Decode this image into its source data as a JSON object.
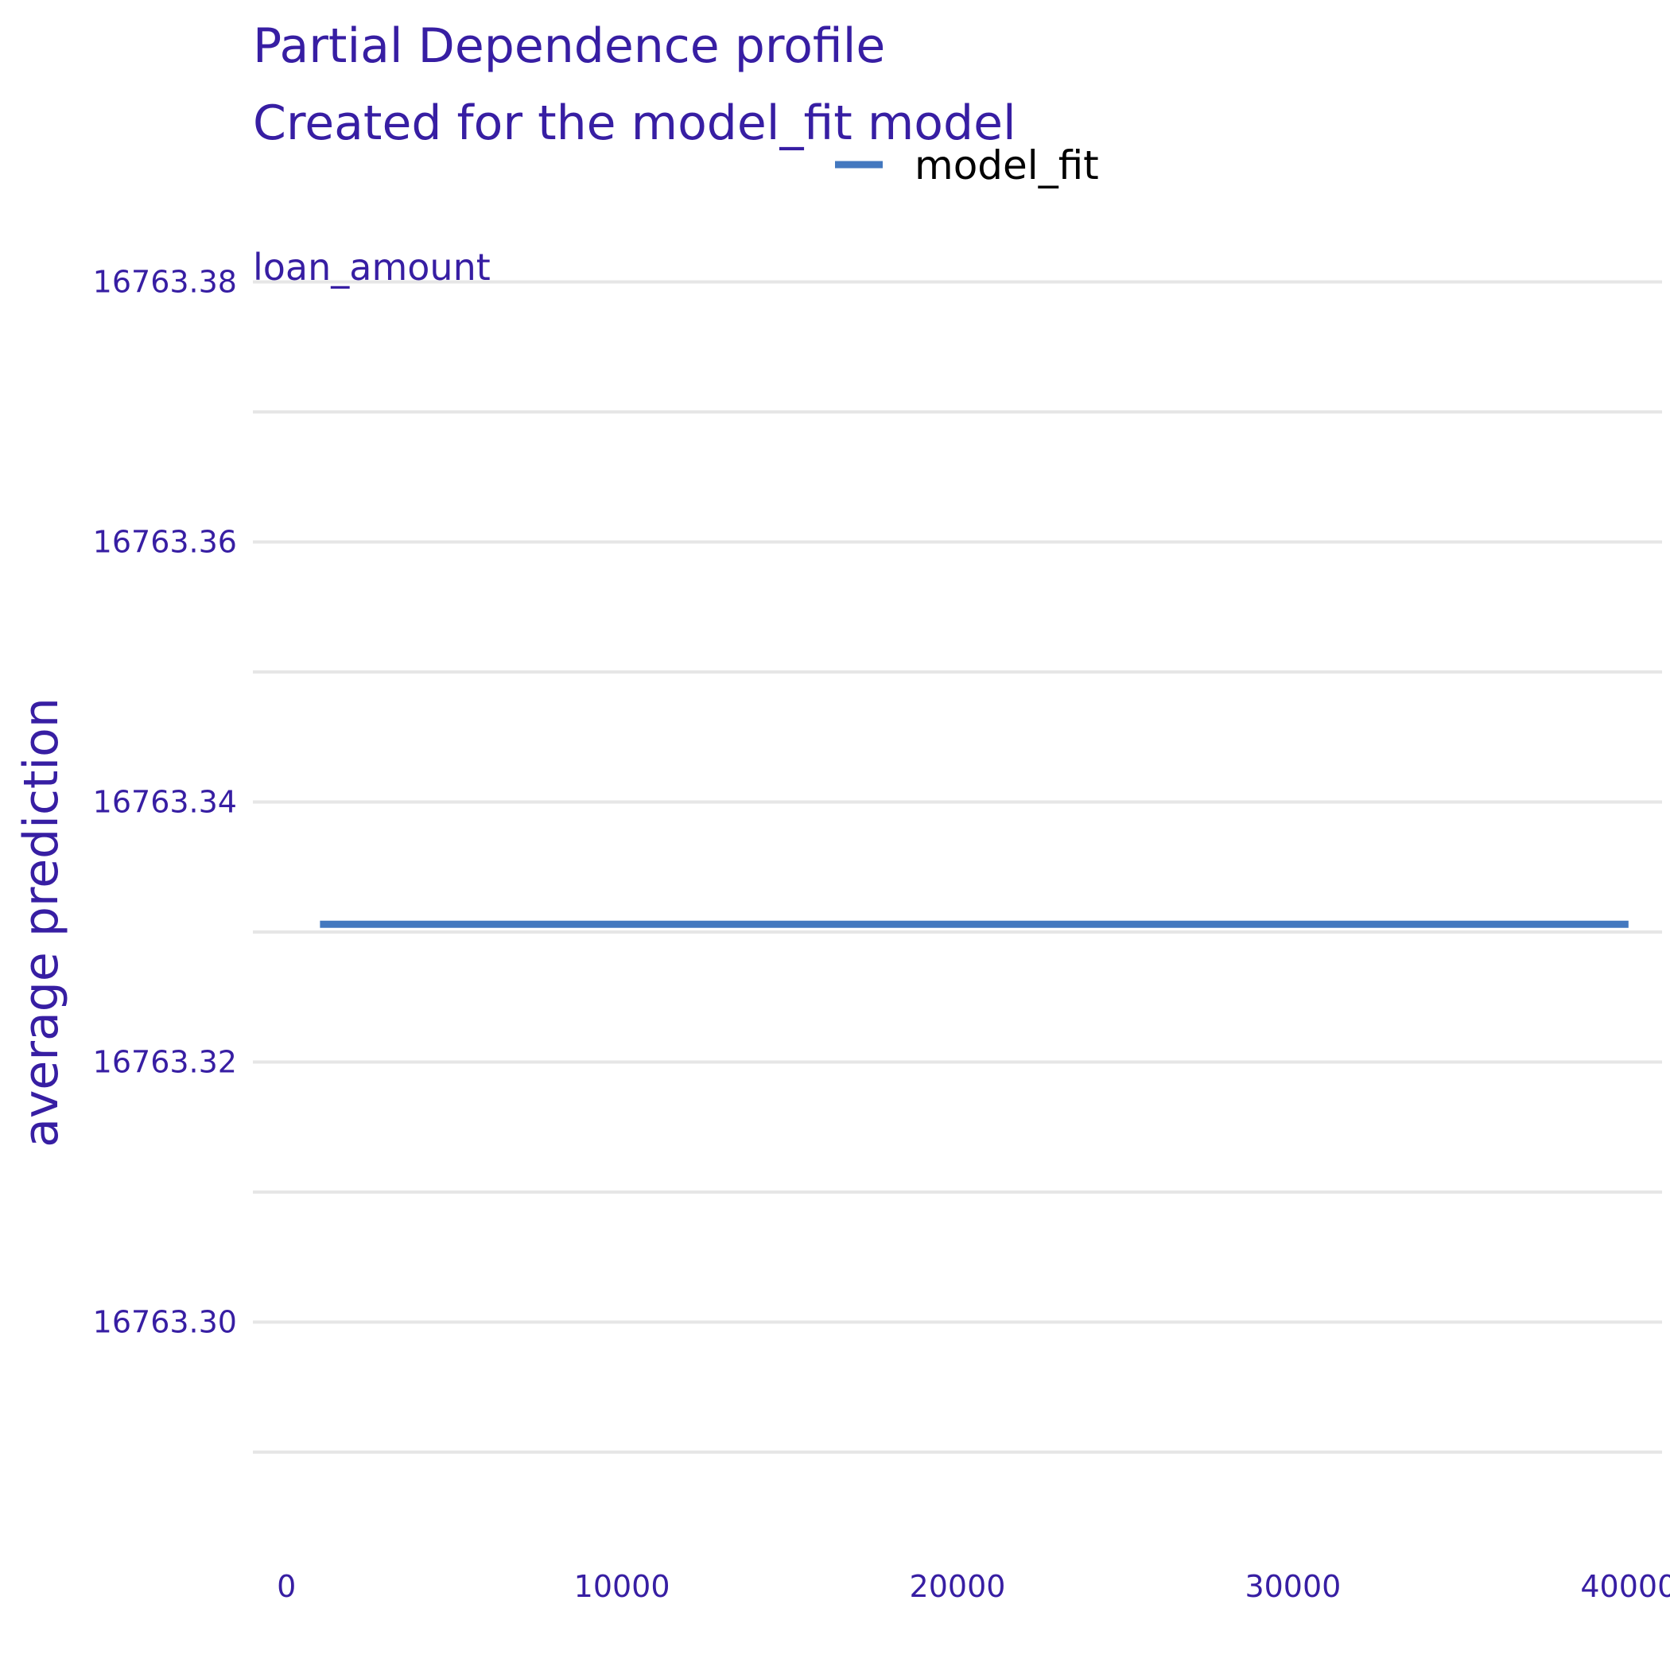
{
  "chart_data": {
    "type": "line",
    "title": "Partial Dependence profile",
    "subtitle": "Created for the model_fit model",
    "facet_label": "loan_amount",
    "xlabel": "",
    "ylabel": "average prediction",
    "xlim": [
      -1000,
      41000
    ],
    "ylim": [
      16763.2815,
      16763.3815
    ],
    "x_ticks": [
      0,
      10000,
      20000,
      30000,
      40000
    ],
    "x_tick_labels": [
      "0",
      "10000",
      "20000",
      "30000",
      "40000"
    ],
    "y_ticks": [
      16763.3,
      16763.32,
      16763.34,
      16763.36,
      16763.38
    ],
    "y_tick_labels": [
      "16763.30",
      "16763.32",
      "16763.34",
      "16763.36",
      "16763.38"
    ],
    "y_minor_grid": [
      16763.29,
      16763.31,
      16763.33,
      16763.35,
      16763.37
    ],
    "grid": true,
    "legend_position": "top",
    "series": [
      {
        "name": "model_fit",
        "color": "#4378bf",
        "x": [
          1000,
          40000
        ],
        "y": [
          16763.3306,
          16763.3306
        ]
      }
    ]
  }
}
